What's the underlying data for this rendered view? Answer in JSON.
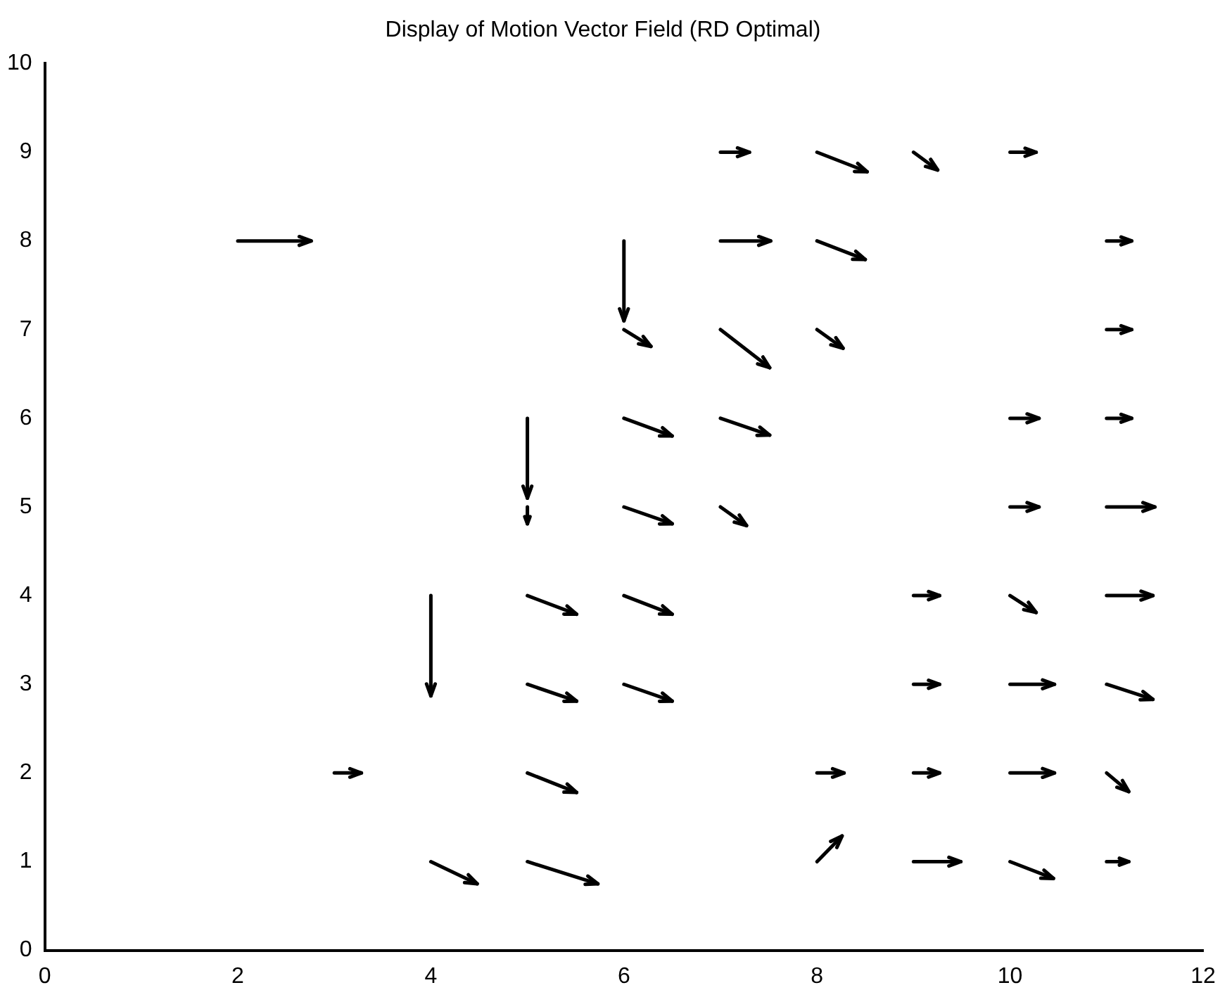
{
  "chart_data": {
    "type": "line",
    "title": "Display of Motion Vector Field (RD Optimal)",
    "xlim": [
      0,
      12
    ],
    "xticks": [
      0,
      2,
      4,
      6,
      8,
      10,
      12
    ],
    "ylim": [
      0,
      10
    ],
    "yticks": [
      0,
      1,
      2,
      3,
      4,
      5,
      6,
      7,
      8,
      9,
      10
    ],
    "grid": false,
    "legend": false,
    "line_style": "solid",
    "series": [
      {
        "color": "#000000",
        "x": [
          2,
          2.76
        ],
        "values": [
          8,
          8
        ]
      },
      {
        "color": "#000000",
        "x": [
          3,
          3.28
        ],
        "values": [
          2,
          2
        ]
      },
      {
        "color": "#000000",
        "x": [
          4,
          4
        ],
        "values": [
          4,
          2.87
        ]
      },
      {
        "color": "#000000",
        "x": [
          4,
          4.48
        ],
        "values": [
          1,
          0.75
        ]
      },
      {
        "color": "#000000",
        "x": [
          5,
          5
        ],
        "values": [
          6,
          5.1
        ]
      },
      {
        "color": "#000000",
        "x": [
          5,
          5
        ],
        "values": [
          5,
          4.81
        ]
      },
      {
        "color": "#000000",
        "x": [
          5,
          5.51
        ],
        "values": [
          4,
          3.79
        ]
      },
      {
        "color": "#000000",
        "x": [
          5,
          5.51
        ],
        "values": [
          3,
          2.81
        ]
      },
      {
        "color": "#000000",
        "x": [
          5,
          5.51
        ],
        "values": [
          2,
          1.78
        ]
      },
      {
        "color": "#000000",
        "x": [
          5,
          5.73
        ],
        "values": [
          1,
          0.75
        ]
      },
      {
        "color": "#000000",
        "x": [
          6,
          6
        ],
        "values": [
          8,
          7.1
        ]
      },
      {
        "color": "#000000",
        "x": [
          6,
          6.28
        ],
        "values": [
          7,
          6.81
        ]
      },
      {
        "color": "#000000",
        "x": [
          6,
          6.5
        ],
        "values": [
          6,
          5.8
        ]
      },
      {
        "color": "#000000",
        "x": [
          6,
          6.5
        ],
        "values": [
          5,
          4.81
        ]
      },
      {
        "color": "#000000",
        "x": [
          6,
          6.5
        ],
        "values": [
          4,
          3.79
        ]
      },
      {
        "color": "#000000",
        "x": [
          6,
          6.5
        ],
        "values": [
          3,
          2.81
        ]
      },
      {
        "color": "#000000",
        "x": [
          7,
          7.3
        ],
        "values": [
          9,
          9
        ]
      },
      {
        "color": "#000000",
        "x": [
          7,
          7.52
        ],
        "values": [
          8,
          8
        ]
      },
      {
        "color": "#000000",
        "x": [
          7,
          7.51
        ],
        "values": [
          7,
          6.57
        ]
      },
      {
        "color": "#000000",
        "x": [
          7,
          7.51
        ],
        "values": [
          6,
          5.81
        ]
      },
      {
        "color": "#000000",
        "x": [
          7,
          7.27
        ],
        "values": [
          5,
          4.79
        ]
      },
      {
        "color": "#000000",
        "x": [
          8,
          8.52
        ],
        "values": [
          9,
          8.78
        ]
      },
      {
        "color": "#000000",
        "x": [
          8,
          8.5
        ],
        "values": [
          8,
          7.79
        ]
      },
      {
        "color": "#000000",
        "x": [
          8,
          8.27
        ],
        "values": [
          7,
          6.79
        ]
      },
      {
        "color": "#000000",
        "x": [
          8,
          8.28
        ],
        "values": [
          2,
          2
        ]
      },
      {
        "color": "#000000",
        "x": [
          8,
          8.26
        ],
        "values": [
          1,
          1.29
        ]
      },
      {
        "color": "#000000",
        "x": [
          9,
          9.25
        ],
        "values": [
          9,
          8.8
        ]
      },
      {
        "color": "#000000",
        "x": [
          9,
          9.27
        ],
        "values": [
          4,
          4
        ]
      },
      {
        "color": "#000000",
        "x": [
          9,
          9.27
        ],
        "values": [
          3,
          3
        ]
      },
      {
        "color": "#000000",
        "x": [
          9,
          9.27
        ],
        "values": [
          2,
          2
        ]
      },
      {
        "color": "#000000",
        "x": [
          9,
          9.49
        ],
        "values": [
          1,
          1
        ]
      },
      {
        "color": "#000000",
        "x": [
          10,
          10.27
        ],
        "values": [
          9,
          9
        ]
      },
      {
        "color": "#000000",
        "x": [
          10,
          10.3
        ],
        "values": [
          6,
          6
        ]
      },
      {
        "color": "#000000",
        "x": [
          10,
          10.3
        ],
        "values": [
          5,
          5
        ]
      },
      {
        "color": "#000000",
        "x": [
          10,
          10.27
        ],
        "values": [
          4,
          3.81
        ]
      },
      {
        "color": "#000000",
        "x": [
          10,
          10.46
        ],
        "values": [
          3,
          3
        ]
      },
      {
        "color": "#000000",
        "x": [
          10,
          10.46
        ],
        "values": [
          2,
          2
        ]
      },
      {
        "color": "#000000",
        "x": [
          10,
          10.45
        ],
        "values": [
          1,
          0.81
        ]
      },
      {
        "color": "#000000",
        "x": [
          11,
          11.26
        ],
        "values": [
          8,
          8
        ]
      },
      {
        "color": "#000000",
        "x": [
          11,
          11.26
        ],
        "values": [
          7,
          7
        ]
      },
      {
        "color": "#000000",
        "x": [
          11,
          11.26
        ],
        "values": [
          6,
          6
        ]
      },
      {
        "color": "#000000",
        "x": [
          11,
          11.5
        ],
        "values": [
          5,
          5
        ]
      },
      {
        "color": "#000000",
        "x": [
          11,
          11.48
        ],
        "values": [
          4,
          4
        ]
      },
      {
        "color": "#000000",
        "x": [
          11,
          11.48
        ],
        "values": [
          3,
          2.83
        ]
      },
      {
        "color": "#000000",
        "x": [
          11,
          11.23
        ],
        "values": [
          2,
          1.79
        ]
      },
      {
        "color": "#000000",
        "x": [
          11,
          11.23
        ],
        "values": [
          1,
          1
        ]
      }
    ]
  }
}
